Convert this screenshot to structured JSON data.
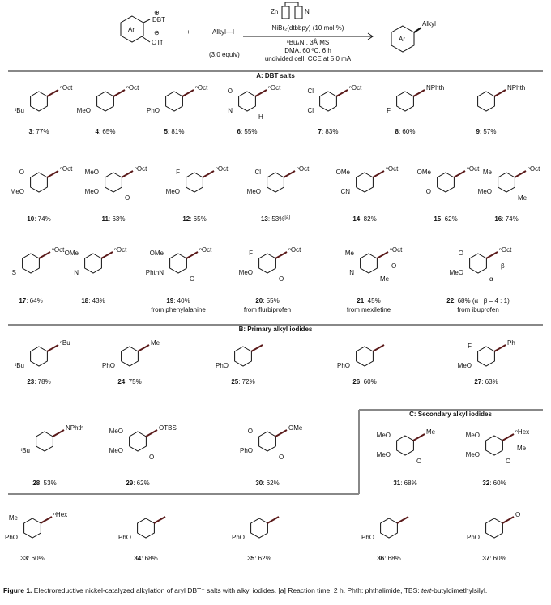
{
  "scheme": {
    "dbt": "DBT",
    "plus_charge": "⊕",
    "minus_charge": "⊖",
    "otf": "OTf",
    "ar_left": "Ar",
    "plus": "+",
    "alkyl_iodide": "Alkyl—I",
    "equiv": "(3.0 equiv)",
    "zn": "Zn",
    "ni": "Ni",
    "cond1": "NiBr₂(dtbbpy) (10 mol %)",
    "cond2": "ⁿBu₄NI, 3Å MS",
    "cond3": "DMA, 60 ºC, 6 h",
    "cond4": "undivided cell, CCE at 5.0 mA",
    "alkyl": "Alkyl",
    "ar_right": "Ar"
  },
  "sections": [
    {
      "title": "A: DBT salts",
      "compounds": [
        {
          "number": "3",
          "yield": ": 77%",
          "atoms": [
            "ⁿOct",
            "ᵗBu"
          ]
        },
        {
          "number": "4",
          "yield": ": 65%",
          "atoms": [
            "ⁿOct",
            "MeO"
          ]
        },
        {
          "number": "5",
          "yield": ": 81%",
          "atoms": [
            "ⁿOct",
            "PhO"
          ]
        },
        {
          "number": "6",
          "yield": ": 55%",
          "atoms": [
            "ⁿOct",
            "N",
            "O",
            "H"
          ]
        },
        {
          "number": "7",
          "yield": ": 83%",
          "atoms": [
            "ⁿOct",
            "Cl",
            "Cl"
          ]
        },
        {
          "number": "8",
          "yield": ": 60%",
          "atoms": [
            "NPhth",
            "F"
          ]
        },
        {
          "number": "9",
          "yield": ": 57%",
          "atoms": [
            "NPhth"
          ]
        },
        {
          "number": "10",
          "yield": ": 74%",
          "atoms": [
            "ⁿOct",
            "MeO",
            "O"
          ]
        },
        {
          "number": "11",
          "yield": ": 63%",
          "atoms": [
            "ⁿOct",
            "MeO",
            "MeO",
            "O"
          ]
        },
        {
          "number": "12",
          "yield": ": 65%",
          "atoms": [
            "ⁿOct",
            "MeO",
            "F"
          ]
        },
        {
          "number": "13",
          "yield": ": 53%",
          "mark": "[a]",
          "atoms": [
            "ⁿOct",
            "MeO",
            "Cl"
          ]
        },
        {
          "number": "14",
          "yield": ": 82%",
          "atoms": [
            "ⁿOct",
            "CN",
            "OMe"
          ]
        },
        {
          "number": "15",
          "yield": ": 62%",
          "atoms": [
            "ⁿOct",
            "O",
            "OMe"
          ]
        },
        {
          "number": "16",
          "yield": ": 74%",
          "atoms": [
            "ⁿOct",
            "MeO",
            "Me",
            "Me"
          ]
        },
        {
          "number": "17",
          "yield": ": 64%",
          "atoms": [
            "ⁿOct",
            "S"
          ]
        },
        {
          "number": "18",
          "yield": ": 43%",
          "atoms": [
            "ⁿOct",
            "N",
            "OMe"
          ]
        },
        {
          "number": "19",
          "yield": ": 40%",
          "atoms": [
            "ⁿOct",
            "PhthN",
            "OMe",
            "O"
          ],
          "notes": [
            "from phenylalanine"
          ]
        },
        {
          "number": "20",
          "yield": ": 55%",
          "atoms": [
            "ⁿOct",
            "MeO",
            "F",
            "O"
          ],
          "notes": [
            "from flurbiprofen"
          ]
        },
        {
          "number": "21",
          "yield": ": 45%",
          "atoms": [
            "ⁿOct",
            "N",
            "Me",
            "Me",
            "O"
          ],
          "notes": [
            "from mexiletine"
          ]
        },
        {
          "number": "22",
          "yield": ": 68% (α : β = 4 : 1)",
          "atoms": [
            "ⁿOct",
            "MeO",
            "O",
            "α",
            "β"
          ],
          "notes": [
            "from ibuprofen"
          ]
        }
      ]
    },
    {
      "title": "B: Primary alkyl iodides",
      "compounds": [
        {
          "number": "23",
          "yield": ": 78%",
          "atoms": [
            "ⁿBu",
            "ᵗBu"
          ]
        },
        {
          "number": "24",
          "yield": ": 75%",
          "atoms": [
            "Me",
            "PhO"
          ]
        },
        {
          "number": "25",
          "yield": ": 72%",
          "atoms": [
            "",
            "PhO"
          ]
        },
        {
          "number": "26",
          "yield": ": 60%",
          "atoms": [
            "",
            "PhO"
          ]
        },
        {
          "number": "27",
          "yield": ": 63%",
          "atoms": [
            "Ph",
            "MeO",
            "F"
          ]
        },
        {
          "number": "28",
          "yield": ": 53%",
          "atoms": [
            "NPhth",
            "ᵗBu"
          ]
        },
        {
          "number": "29",
          "yield": ": 62%",
          "atoms": [
            "OTBS",
            "MeO",
            "MeO",
            "O"
          ]
        },
        {
          "number": "30",
          "yield": ": 62%",
          "atoms": [
            "OMe",
            "PhO",
            "O",
            "O"
          ]
        }
      ]
    },
    {
      "title": "C: Secondary alkyl iodides",
      "compounds": [
        {
          "number": "31",
          "yield": ": 68%",
          "atoms": [
            "Me",
            "MeO",
            "MeO",
            "O"
          ]
        },
        {
          "number": "32",
          "yield": ": 60%",
          "atoms": [
            "ⁿHex",
            "MeO",
            "MeO",
            "O",
            "Me"
          ]
        },
        {
          "number": "33",
          "yield": ": 60%",
          "atoms": [
            "ⁿHex",
            "PhO",
            "Me"
          ]
        },
        {
          "number": "34",
          "yield": ": 68%",
          "atoms": [
            "",
            "PhO"
          ]
        },
        {
          "number": "35",
          "yield": ": 62%",
          "atoms": [
            "",
            "PhO"
          ]
        },
        {
          "number": "36",
          "yield": ": 68%",
          "atoms": [
            "",
            "PhO"
          ]
        },
        {
          "number": "37",
          "yield": ": 60%",
          "atoms": [
            "O",
            "PhO"
          ]
        }
      ]
    }
  ],
  "caption": {
    "label": "Figure 1.",
    "text": " Electroreductive nickel-catalyzed alkylation of aryl DBT⁺ salts with alkyl iodides. [a] Reaction time: 2 h. Phth: phthalimide, TBS: ",
    "italic": "tert",
    "tail": "-butyldimethylsilyl."
  }
}
